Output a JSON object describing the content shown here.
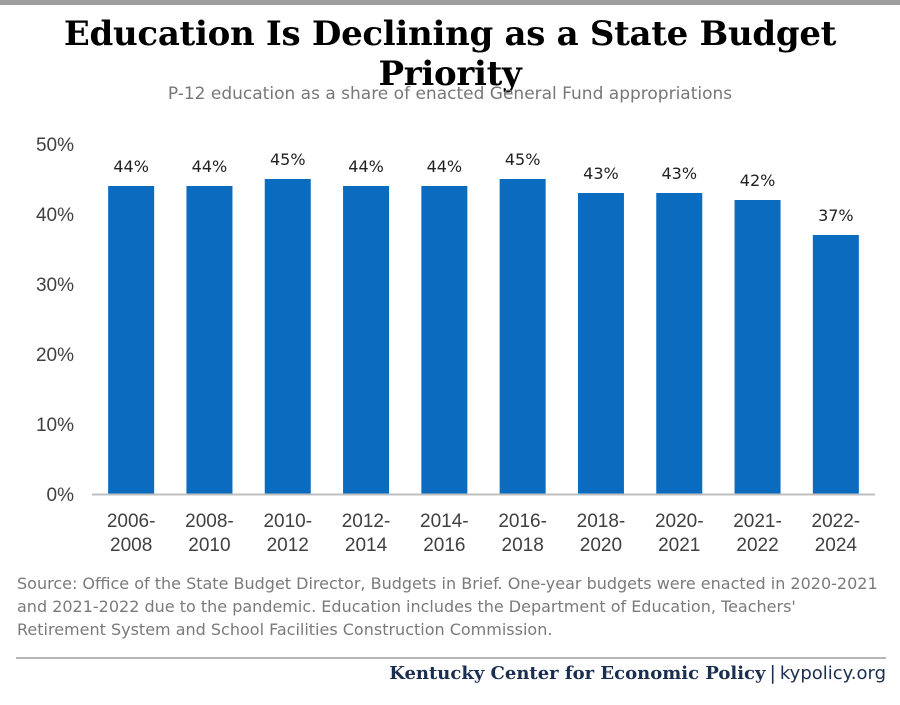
{
  "title": "Education Is Declining as a State Budget Priority",
  "subtitle": "P-12 education as a share of enacted General Fund appropriations",
  "source": "Source: Office of the State Budget Director, Budgets in Brief. One-year budgets were enacted in 2020-2021 and 2021-2022 due to the pandemic. Education includes the Department of Education, Teachers' Retirement System and School Facilities Construction Commission.",
  "footer": {
    "org": "Kentucky Center for Economic Policy",
    "separator": "|",
    "site": "kypolicy.org"
  },
  "colors": {
    "bar": "#0b6cbf",
    "axis": "#bfbfbf",
    "tick_text": "#404040",
    "label_text": "#222222"
  },
  "chart_data": {
    "type": "bar",
    "categories": [
      [
        "2006-",
        "2008"
      ],
      [
        "2008-",
        "2010"
      ],
      [
        "2010-",
        "2012"
      ],
      [
        "2012-",
        "2014"
      ],
      [
        "2014-",
        "2016"
      ],
      [
        "2016-",
        "2018"
      ],
      [
        "2018-",
        "2020"
      ],
      [
        "2020-",
        "2021"
      ],
      [
        "2021-",
        "2022"
      ],
      [
        "2022-",
        "2024"
      ]
    ],
    "values": [
      44,
      44,
      45,
      44,
      44,
      45,
      43,
      43,
      42,
      37
    ],
    "data_labels": [
      "44%",
      "44%",
      "45%",
      "44%",
      "44%",
      "45%",
      "43%",
      "43%",
      "42%",
      "37%"
    ],
    "y_ticks": [
      "0%",
      "10%",
      "20%",
      "30%",
      "40%",
      "50%"
    ],
    "ylim": [
      0,
      50
    ],
    "xlabel": "",
    "ylabel": "",
    "grid": false,
    "legend": "none"
  }
}
